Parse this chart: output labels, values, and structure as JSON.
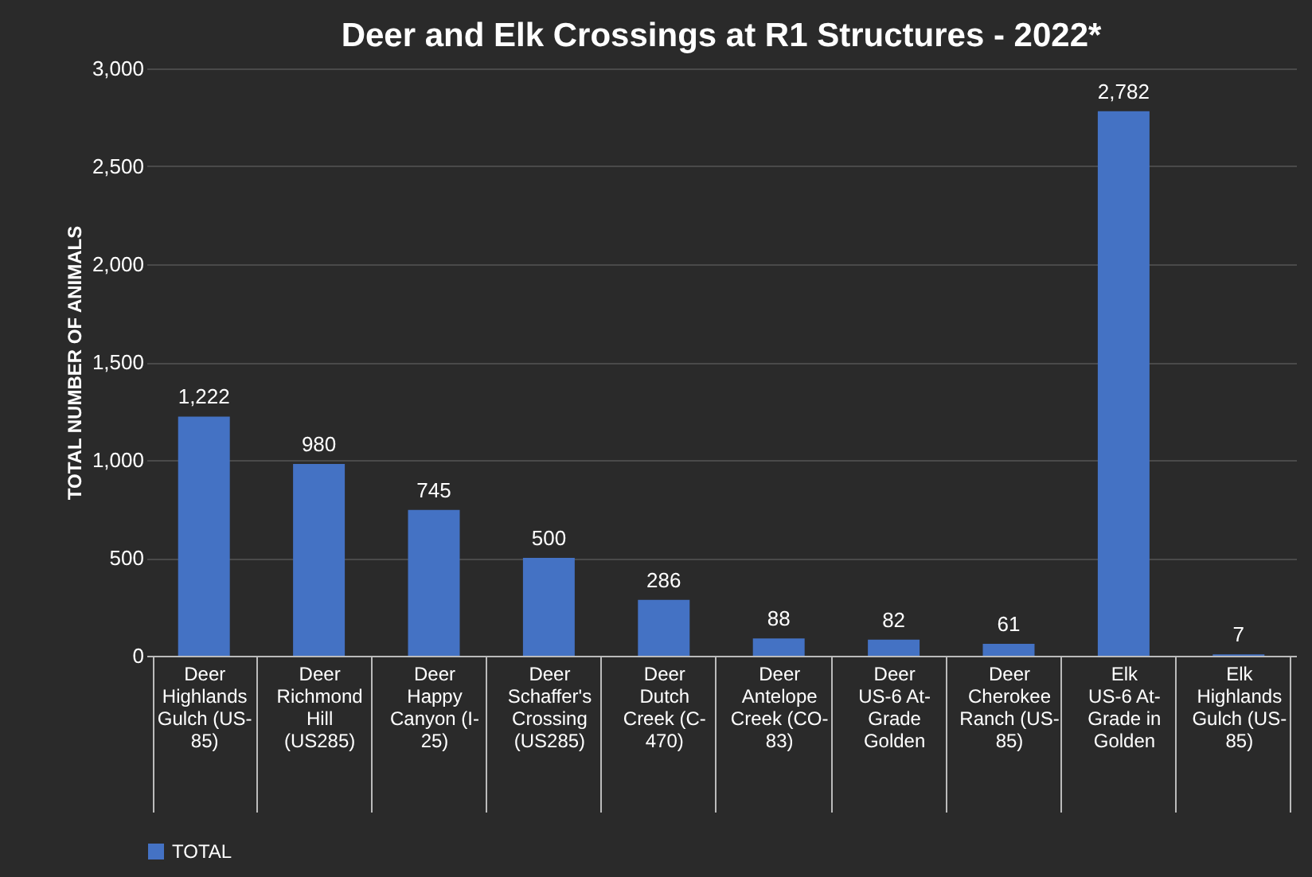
{
  "chart_data": {
    "type": "bar",
    "title": "Deer and Elk Crossings at R1 Structures - 2022*",
    "ylabel": "TOTAL NUMBER OF ANIMALS",
    "categories": [
      "Deer\nHighlands Gulch (US-85)",
      "Deer\nRichmond Hill (US285)",
      "Deer\nHappy Canyon (I-25)",
      "Deer\nSchaffer's Crossing (US285)",
      "Deer\nDutch Creek (C-470)",
      "Deer\nAntelope Creek (CO-83)",
      "Deer\nUS-6 At-Grade Golden",
      "Deer\nCherokee Ranch (US-85)",
      "Elk\nUS-6 At-Grade in Golden",
      "Elk\nHighlands Gulch (US-85)"
    ],
    "series": [
      {
        "name": "TOTAL",
        "color": "#4472c4",
        "values": [
          1222,
          980,
          745,
          500,
          286,
          88,
          82,
          61,
          2782,
          7
        ],
        "value_labels": [
          "1,222",
          "980",
          "745",
          "500",
          "286",
          "88",
          "82",
          "61",
          "2,782",
          "7"
        ]
      }
    ],
    "ylim": [
      0,
      3000
    ],
    "yticks": [
      {
        "value": 0,
        "label": "0"
      },
      {
        "value": 500,
        "label": "500"
      },
      {
        "value": 1000,
        "label": "1,000"
      },
      {
        "value": 1500,
        "label": "1,500"
      },
      {
        "value": 2000,
        "label": "2,000"
      },
      {
        "value": 2500,
        "label": "2,500"
      },
      {
        "value": 3000,
        "label": "3,000"
      }
    ],
    "grid": "y",
    "legend": "bottom"
  }
}
